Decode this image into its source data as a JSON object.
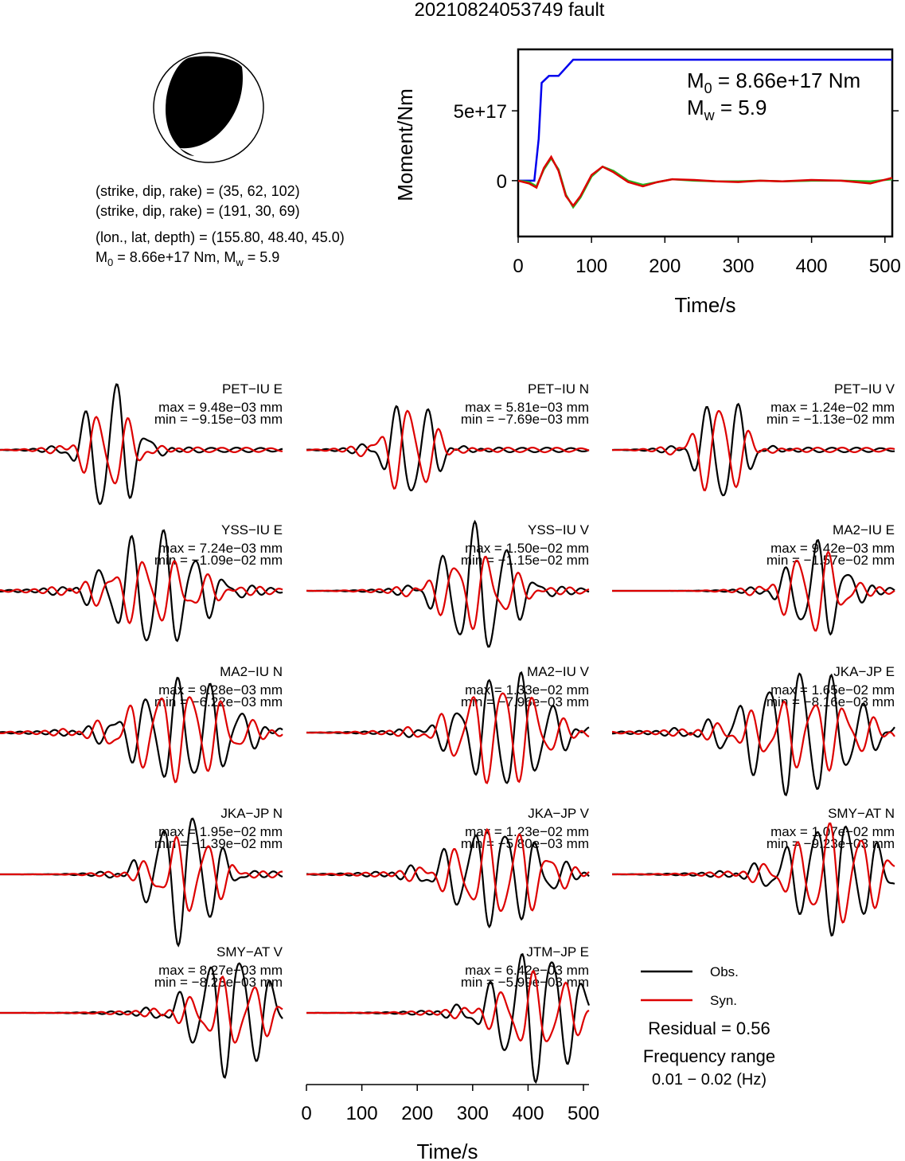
{
  "title": "20210824053749 fault",
  "beachball": {
    "strike_dip_rake_1": "(strike, dip, rake) = (35, 62, 102)",
    "strike_dip_rake_2": "(strike, dip, rake) = (191, 30, 69)",
    "location": "(lon., lat, depth) = (155.80, 48.40, 45.0)",
    "moment_prefix": "M",
    "moment_sub": "0",
    "moment_mid": " = 8.66e+17 Nm, M",
    "mw_sub": "w",
    "mw_tail": " = 5.9"
  },
  "moment_plot": {
    "ylabel": "Moment/Nm",
    "xlabel": "Time/s",
    "m0_prefix": "M",
    "m0_sub": "0",
    "m0_value": " = 8.66e+17 Nm",
    "mw_prefix": "M",
    "mw_sub": "w",
    "mw_value": " = 5.9",
    "xticks": [
      "0",
      "100",
      "200",
      "300",
      "400",
      "500"
    ],
    "yticks": [
      "0",
      "5e+17"
    ]
  },
  "waveform_xlabel": "Time/s",
  "waveform_xticks": [
    "0",
    "100",
    "200",
    "300",
    "400",
    "500"
  ],
  "legend": {
    "obs": "Obs.",
    "syn": "Syn.",
    "residual": "Residual = 0.56",
    "freq_title": "Frequency range",
    "freq_value": "0.01 − 0.02 (Hz)"
  },
  "colors": {
    "obs": "#000000",
    "syn": "#dd0000",
    "moment": "#0000ee",
    "green": "#22bb22"
  },
  "chart_data": [
    {
      "type": "line",
      "name": "moment-release",
      "xlabel": "Time/s",
      "ylabel": "Moment/Nm",
      "xlim": [
        0,
        510
      ],
      "ylim": [
        -4e+17,
        9.4e+17
      ],
      "series": [
        {
          "name": "cumulative moment",
          "color": "#0000ee",
          "x": [
            0,
            22,
            28,
            32,
            42,
            55,
            75,
            510
          ],
          "y": [
            0,
            0,
            3e+17,
            7e+17,
            7.5e+17,
            7.5e+17,
            8.66e+17,
            8.66e+17
          ]
        },
        {
          "name": "moment rate (green)",
          "color": "#22bb22",
          "x": [
            0,
            15,
            25,
            35,
            45,
            55,
            65,
            75,
            85,
            100,
            115,
            130,
            150,
            170,
            190,
            210,
            240,
            270,
            300,
            330,
            360,
            400,
            440,
            480,
            510
          ],
          "y": [
            0,
            -1e+16,
            -4e+16,
            8e+16,
            1.6e+17,
            8e+16,
            -1e+17,
            -1.9e+17,
            -1.2e+17,
            3e+16,
            1e+17,
            7e+16,
            0,
            -3e+16,
            -1e+16,
            1e+16,
            0,
            -5000000000000000.0,
            -5000000000000000.0,
            0,
            -5000000000000000.0,
            0,
            0,
            -5000000000000000.0,
            1e+16
          ]
        },
        {
          "name": "moment rate (red)",
          "color": "#dd0000",
          "x": [
            0,
            15,
            25,
            35,
            45,
            55,
            65,
            75,
            85,
            100,
            115,
            130,
            150,
            170,
            190,
            210,
            240,
            270,
            300,
            330,
            360,
            400,
            440,
            480,
            510
          ],
          "y": [
            0,
            -2e+16,
            -5e+16,
            9e+16,
            1.7e+17,
            7e+16,
            -1.1e+17,
            -1.8e+17,
            -1.1e+17,
            4e+16,
            1e+17,
            6e+16,
            -1e+16,
            -4e+16,
            -1e+16,
            1e+16,
            5000000000000000.0,
            -5000000000000000.0,
            -1e+16,
            0,
            -5000000000000000.0,
            5000000000000000.0,
            0,
            -2e+16,
            2e+16
          ]
        }
      ]
    },
    {
      "type": "line",
      "name": "waveform-fits",
      "xlabel": "Time/s",
      "xlim": [
        0,
        510
      ],
      "stations": [
        {
          "label": "PET−IU E",
          "max": "max = 9.48e−03 mm",
          "min": "min = −9.15e−03 mm",
          "seed": 1,
          "center": 200,
          "osc": 80
        },
        {
          "label": "PET−IU N",
          "max": "max = 5.81e−03 mm",
          "min": "min = −7.69e−03 mm",
          "seed": 2,
          "center": 190,
          "osc": 80
        },
        {
          "label": "PET−IU V",
          "max": "max = 1.24e−02 mm",
          "min": "min = −1.13e−02 mm",
          "seed": 3,
          "center": 200,
          "osc": 75
        },
        {
          "label": "YSS−IU E",
          "max": "max = 7.24e−03 mm",
          "min": "min = −1.09e−02 mm",
          "seed": 4,
          "center": 280,
          "osc": 140
        },
        {
          "label": "YSS−IU V",
          "max": "max = 1.50e−02 mm",
          "min": "min = −1.15e−02 mm",
          "seed": 5,
          "center": 310,
          "osc": 110
        },
        {
          "label": "MA2−IU E",
          "max": "max = 9.42e−03 mm",
          "min": "min = −1.57e−02 mm",
          "seed": 6,
          "center": 370,
          "osc": 90
        },
        {
          "label": "MA2−IU N",
          "max": "max = 9.28e−03 mm",
          "min": "min = −6.22e−03 mm",
          "seed": 7,
          "center": 330,
          "osc": 160
        },
        {
          "label": "MA2−IU V",
          "max": "max = 1.33e−02 mm",
          "min": "min = −7.96e−03 mm",
          "seed": 8,
          "center": 360,
          "osc": 140
        },
        {
          "label": "JKA−JP E",
          "max": "max = 1.65e−02 mm",
          "min": "min = −8.16e−03 mm",
          "seed": 9,
          "center": 340,
          "osc": 180
        },
        {
          "label": "JKA−JP N",
          "max": "max = 1.95e−02 mm",
          "min": "min = −1.39e−02 mm",
          "seed": 10,
          "center": 330,
          "osc": 100
        },
        {
          "label": "JKA−JP V",
          "max": "max = 1.23e−02 mm",
          "min": "min = −5.80e−03 mm",
          "seed": 11,
          "center": 340,
          "osc": 150
        },
        {
          "label": "SMY−AT N",
          "max": "max = 1.07e−02 mm",
          "min": "min = −9.23e−03 mm",
          "seed": 12,
          "center": 400,
          "osc": 150
        },
        {
          "label": "SMY−AT V",
          "max": "max = 8.27e−03 mm",
          "min": "min = −8.23e−03 mm",
          "seed": 13,
          "center": 420,
          "osc": 130
        },
        {
          "label": "JTM−JP E",
          "max": "max = 6.42e−03 mm",
          "min": "min = −5.99e−03 mm",
          "seed": 14,
          "center": 420,
          "osc": 140
        }
      ],
      "series": [
        {
          "name": "Obs.",
          "color": "#000000"
        },
        {
          "name": "Syn.",
          "color": "#dd0000"
        }
      ]
    }
  ]
}
